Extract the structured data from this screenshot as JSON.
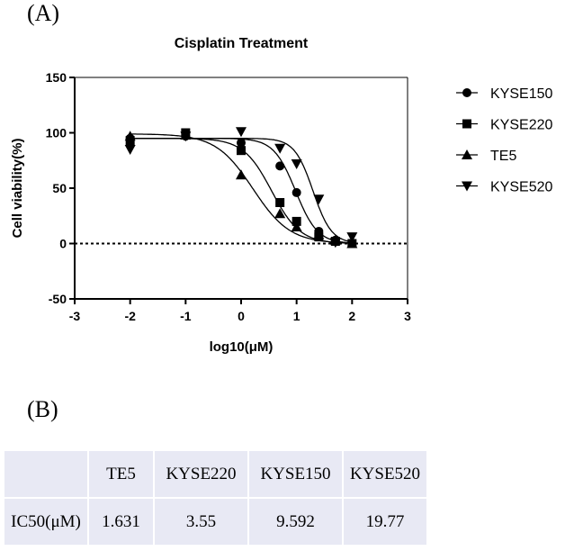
{
  "panel_a_label": "(A)",
  "panel_b_label": "(B)",
  "chart_data": {
    "type": "scatter",
    "title": "Cisplatin Treatment",
    "xlabel": "log10(μM)",
    "ylabel": "Cell viability(%)",
    "xlim": [
      -3,
      3
    ],
    "ylim": [
      -50,
      150
    ],
    "xticks": [
      "-3",
      "-2",
      "-1",
      "0",
      "1",
      "2",
      "3"
    ],
    "yticks": [
      "150",
      "100",
      "50",
      "0",
      "-50"
    ],
    "reference_line": 0,
    "legend_position": "right",
    "x": [
      -2,
      -1,
      0,
      0.7,
      1,
      1.4,
      1.7,
      2
    ],
    "series": [
      {
        "name": "KYSE150",
        "marker": "circle",
        "values": [
          95,
          97,
          91,
          70,
          46,
          11,
          3,
          0
        ],
        "fit": {
          "top": 95,
          "bottom": 0,
          "ic50": 9.592,
          "hill": 2.2
        }
      },
      {
        "name": "KYSE220",
        "marker": "square",
        "values": [
          93,
          100,
          84,
          37,
          20,
          6,
          2,
          0
        ],
        "fit": {
          "top": 95,
          "bottom": 0,
          "ic50": 3.55,
          "hill": 1.7
        }
      },
      {
        "name": "TE5",
        "marker": "triangle-up",
        "values": [
          97,
          98,
          62,
          27,
          15,
          8,
          3,
          0
        ],
        "fit": {
          "top": 99,
          "bottom": 0,
          "ic50": 1.631,
          "hill": 1.3
        }
      },
      {
        "name": "KYSE520",
        "marker": "triangle-down",
        "values": [
          85,
          97,
          101,
          86,
          72,
          40,
          1,
          6
        ],
        "fit": {
          "top": 95,
          "bottom": 0,
          "ic50": 19.77,
          "hill": 2.6
        }
      }
    ]
  },
  "table": {
    "headers": [
      "",
      "TE5",
      "KYSE220",
      "KYSE150",
      "KYSE520"
    ],
    "row": [
      "IC50(μM)",
      "1.631",
      "3.55",
      "9.592",
      "19.77"
    ]
  }
}
